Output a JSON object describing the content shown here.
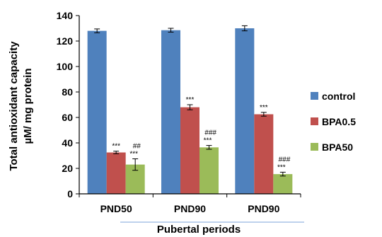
{
  "colors": {
    "control": "#4F81BD",
    "BPA0.5": "#C0504D",
    "BPA50": "#9BBB59",
    "axis": "#000000",
    "bracket": "#A9C4E6"
  },
  "chart_data": {
    "type": "bar",
    "xlabel": "Pubertal periods",
    "ylabel_line1": "Total antioxidant capacity",
    "ylabel_line2": "µM/ mg protein",
    "ylim": [
      0,
      140
    ],
    "yticks": [
      "0",
      "20",
      "40",
      "60",
      "80",
      "100",
      "120",
      "140"
    ],
    "grid": false,
    "legend_position": "right",
    "categories": [
      "PND50",
      "PND90",
      "PND90"
    ],
    "series": [
      {
        "name": "control",
        "values": [
          128,
          128.5,
          130
        ],
        "errors": [
          1.5,
          1.5,
          2
        ],
        "annotations": [
          "",
          "",
          ""
        ]
      },
      {
        "name": "BPA0.5",
        "values": [
          32.5,
          68,
          62.5
        ],
        "errors": [
          1,
          2,
          1.5
        ],
        "annotations": [
          "***",
          "***",
          "***"
        ]
      },
      {
        "name": "BPA50",
        "values": [
          23,
          36.5,
          15.5
        ],
        "errors": [
          4.5,
          1.5,
          1.5
        ],
        "annotations": [
          "##|***",
          "###|***",
          "###|***"
        ]
      }
    ]
  }
}
